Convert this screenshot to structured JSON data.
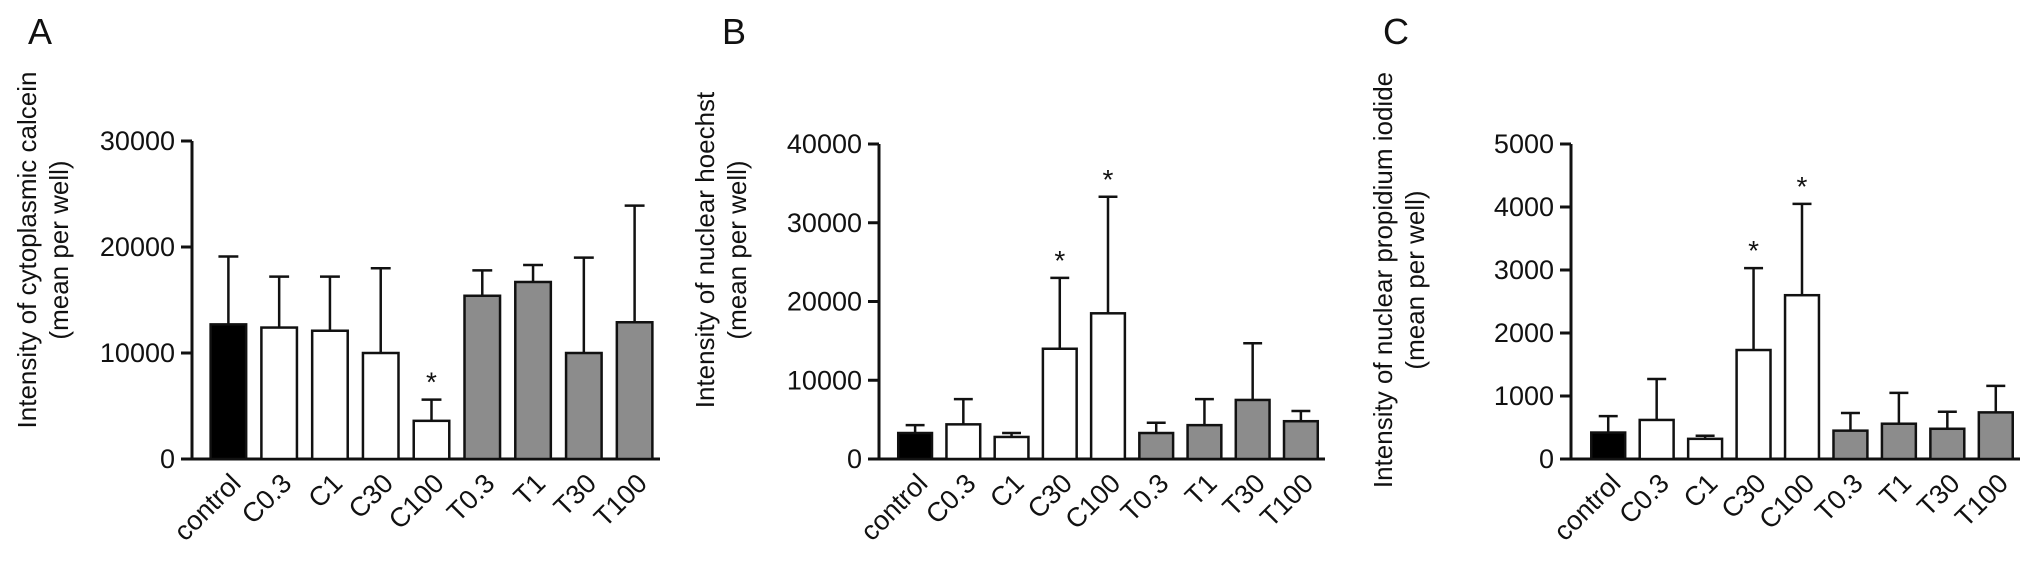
{
  "chart_data": [
    {
      "type": "bar",
      "panel_label": "A",
      "ylabel_lines": [
        "Intensity of cytoplasmic calcein",
        "(mean per well)"
      ],
      "ylim": [
        0,
        30000
      ],
      "yticks": [
        0,
        10000,
        20000,
        30000
      ],
      "categories": [
        "control",
        "C0.3",
        "C1",
        "C30",
        "C100",
        "T0.3",
        "T1",
        "T30",
        "T100"
      ],
      "values": [
        12700,
        12400,
        12100,
        10000,
        3600,
        15400,
        16700,
        10000,
        12900
      ],
      "errors": [
        6400,
        4800,
        5100,
        8000,
        2000,
        2400,
        1600,
        9000,
        11000
      ],
      "significance": [
        "",
        "",
        "",
        "",
        "*",
        "",
        "",
        "",
        ""
      ],
      "bar_colors": [
        "#000000",
        "#ffffff",
        "#ffffff",
        "#ffffff",
        "#ffffff",
        "#8c8c8c",
        "#8c8c8c",
        "#8c8c8c",
        "#8c8c8c"
      ]
    },
    {
      "type": "bar",
      "panel_label": "B",
      "ylabel_lines": [
        "Intensity of nuclear hoechst",
        "(mean per well)"
      ],
      "ylim": [
        0,
        40000
      ],
      "yticks": [
        0,
        10000,
        20000,
        30000,
        40000
      ],
      "categories": [
        "control",
        "C0.3",
        "C1",
        "C30",
        "C100",
        "T0.3",
        "T1",
        "T30",
        "T100"
      ],
      "values": [
        3300,
        4400,
        2800,
        14000,
        18500,
        3300,
        4300,
        7500,
        4800
      ],
      "errors": [
        1000,
        3200,
        500,
        9000,
        14800,
        1300,
        3300,
        7200,
        1300
      ],
      "significance": [
        "",
        "",
        "",
        "*",
        "*",
        "",
        "",
        "",
        ""
      ],
      "bar_colors": [
        "#000000",
        "#ffffff",
        "#ffffff",
        "#ffffff",
        "#ffffff",
        "#8c8c8c",
        "#8c8c8c",
        "#8c8c8c",
        "#8c8c8c"
      ]
    },
    {
      "type": "bar",
      "panel_label": "C",
      "ylabel_lines": [
        "Intensity of nuclear propidium iodide",
        "(mean per well)"
      ],
      "ylim": [
        0,
        5000
      ],
      "yticks": [
        0,
        1000,
        2000,
        3000,
        4000,
        5000
      ],
      "categories": [
        "control",
        "C0.3",
        "C1",
        "C30",
        "C100",
        "T0.3",
        "T1",
        "T30",
        "T100"
      ],
      "values": [
        420,
        620,
        320,
        1730,
        2600,
        450,
        560,
        480,
        740
      ],
      "errors": [
        260,
        650,
        50,
        1300,
        1450,
        280,
        490,
        270,
        420
      ],
      "significance": [
        "",
        "",
        "",
        "*",
        "*",
        "",
        "",
        "",
        ""
      ],
      "bar_colors": [
        "#000000",
        "#ffffff",
        "#ffffff",
        "#ffffff",
        "#ffffff",
        "#8c8c8c",
        "#8c8c8c",
        "#8c8c8c",
        "#8c8c8c"
      ]
    }
  ]
}
